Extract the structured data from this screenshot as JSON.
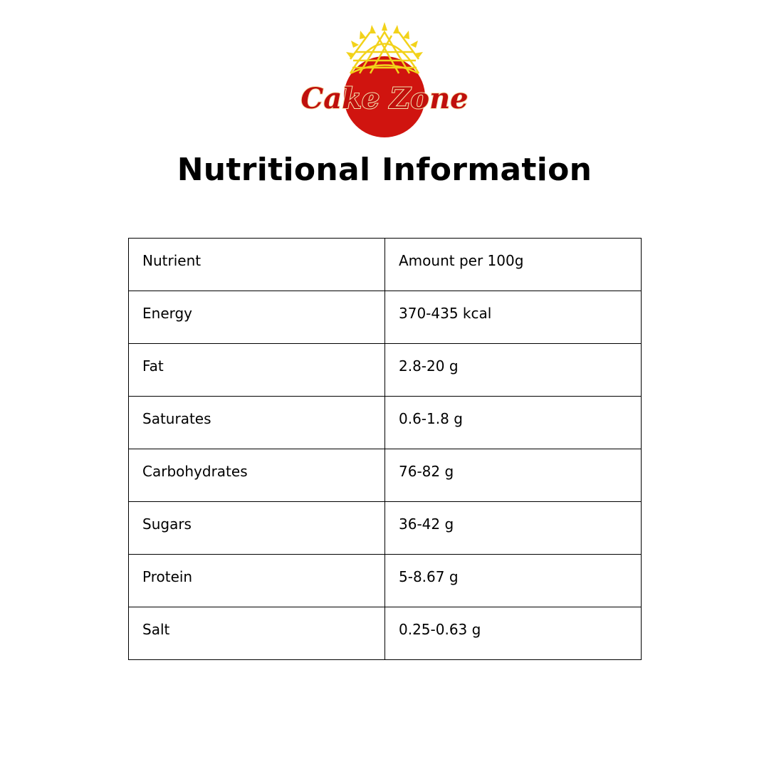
{
  "logo": {
    "text": "Cake Zone",
    "colors": {
      "red": "#d0140f",
      "gold": "#f2d21a"
    }
  },
  "title": "Nutritional Information",
  "table": {
    "headers": [
      "Nutrient",
      "Amount per 100g"
    ],
    "rows": [
      [
        "Energy",
        "370-435 kcal"
      ],
      [
        "Fat",
        "2.8-20 g"
      ],
      [
        "Saturates",
        "0.6-1.8 g"
      ],
      [
        "Carbohydrates",
        "76-82 g"
      ],
      [
        "Sugars",
        "36-42 g"
      ],
      [
        "Protein",
        "5-8.67 g"
      ],
      [
        "Salt",
        "0.25-0.63 g"
      ]
    ]
  }
}
